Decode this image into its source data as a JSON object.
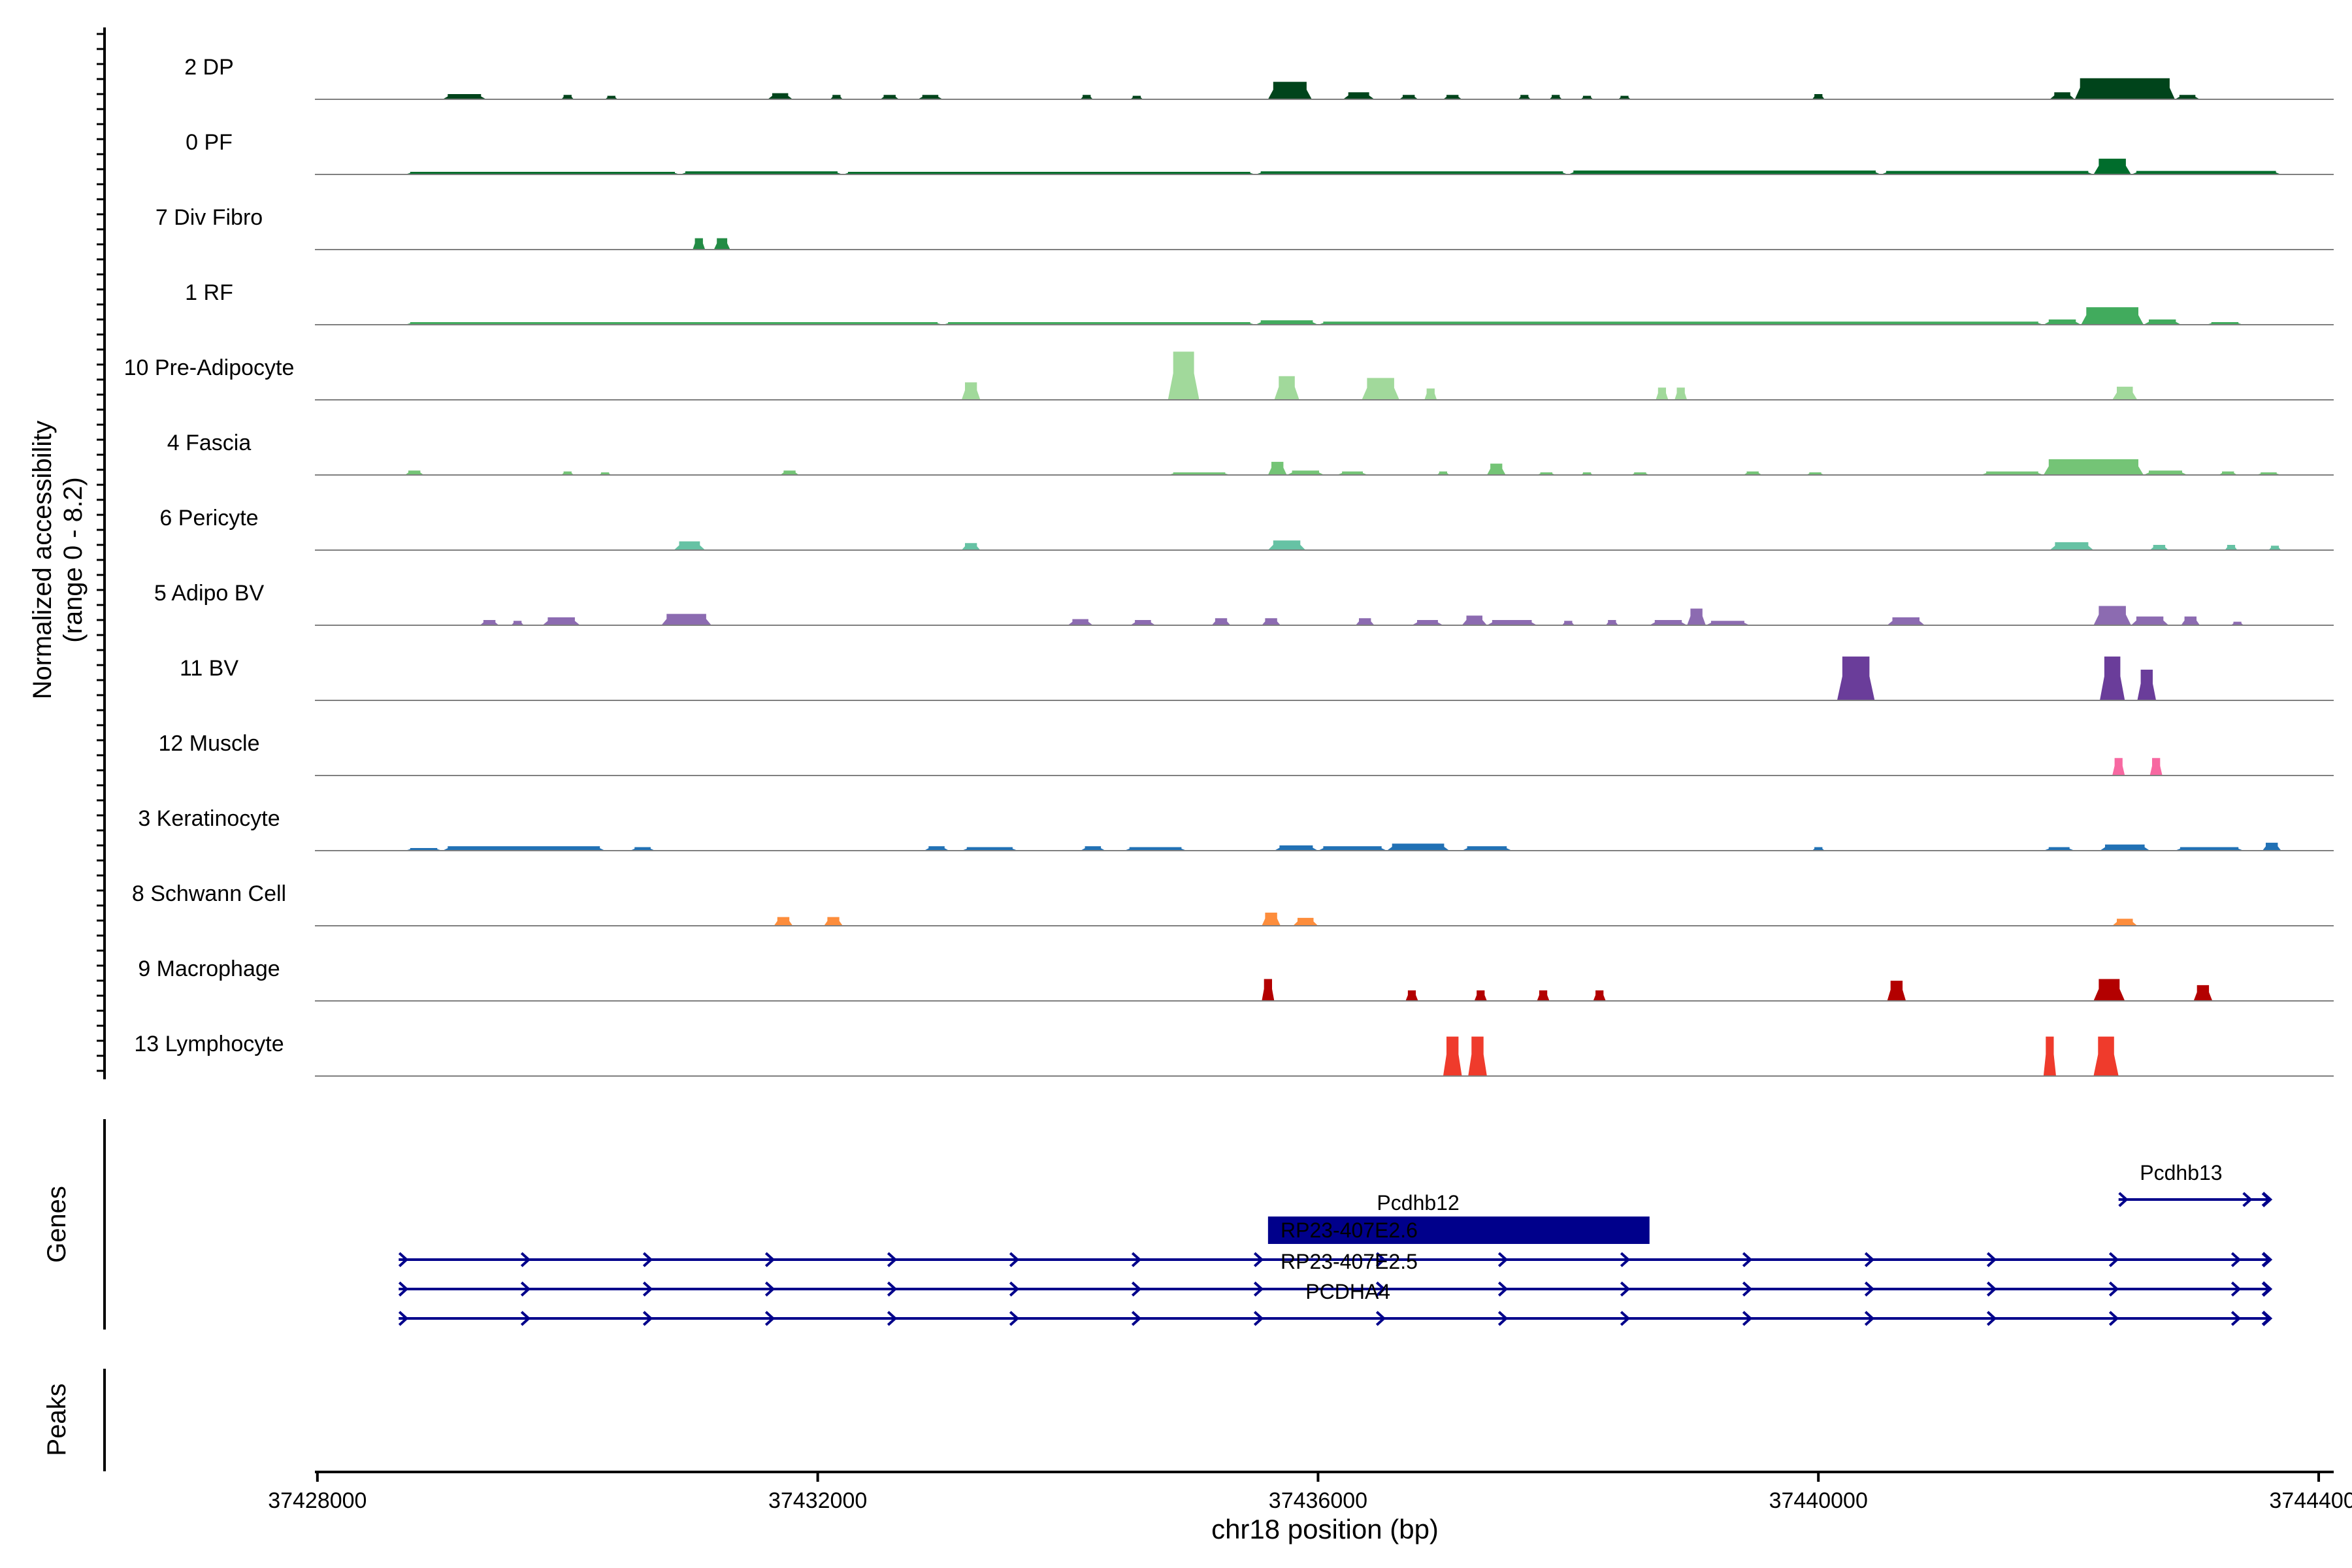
{
  "chart_data": {
    "type": "area",
    "ylabel_line1": "Normalized accessibility",
    "ylabel_line2": "(range 0 - 8.2)",
    "genes_label": "Genes",
    "peaks_label": "Peaks",
    "xlabel": "chr18 position (bp)",
    "xlim": [
      37427980,
      37444120
    ],
    "ylim": [
      0,
      8.2
    ],
    "xticks": [
      37428000,
      37432000,
      37436000,
      37440000,
      37444000
    ],
    "xtick_labels": [
      "37428000",
      "37432000",
      "37436000",
      "37440000",
      "37444000"
    ],
    "tracks": [
      {
        "name": "2 DP",
        "color": "#00441b",
        "segments": [
          [
            37429000,
            37429350,
            0.6
          ],
          [
            37429950,
            37430050,
            0.5
          ],
          [
            37430300,
            37430400,
            0.4
          ],
          [
            37431600,
            37431800,
            0.7
          ],
          [
            37432100,
            37432200,
            0.5
          ],
          [
            37432500,
            37432650,
            0.5
          ],
          [
            37432800,
            37433000,
            0.5
          ],
          [
            37434100,
            37434200,
            0.5
          ],
          [
            37434500,
            37434600,
            0.4
          ],
          [
            37435600,
            37435950,
            2.0
          ],
          [
            37436200,
            37436450,
            0.8
          ],
          [
            37436650,
            37436800,
            0.5
          ],
          [
            37437000,
            37437150,
            0.5
          ],
          [
            37437600,
            37437700,
            0.5
          ],
          [
            37437850,
            37437950,
            0.5
          ],
          [
            37438100,
            37438200,
            0.4
          ],
          [
            37438400,
            37438500,
            0.4
          ],
          [
            37439950,
            37440050,
            0.6
          ],
          [
            37441850,
            37442050,
            0.8
          ],
          [
            37442050,
            37442850,
            2.4
          ],
          [
            37442850,
            37443050,
            0.5
          ]
        ]
      },
      {
        "name": "0 PF",
        "color": "#006d2c",
        "segments": [
          [
            37428700,
            37430900,
            0.3
          ],
          [
            37430900,
            37432200,
            0.35
          ],
          [
            37432200,
            37435500,
            0.3
          ],
          [
            37435500,
            37438000,
            0.35
          ],
          [
            37438000,
            37440500,
            0.45
          ],
          [
            37440500,
            37442200,
            0.4
          ],
          [
            37442200,
            37442500,
            1.8
          ],
          [
            37442500,
            37443700,
            0.4
          ]
        ]
      },
      {
        "name": "7 Div Fibro",
        "color": "#238b45",
        "segments": [
          [
            37431000,
            37431100,
            1.3
          ],
          [
            37431170,
            37431300,
            1.3
          ]
        ]
      },
      {
        "name": "1 RF",
        "color": "#41ab5d",
        "segments": [
          [
            37428700,
            37433000,
            0.3
          ],
          [
            37433000,
            37435500,
            0.3
          ],
          [
            37435500,
            37436000,
            0.5
          ],
          [
            37436000,
            37441800,
            0.35
          ],
          [
            37441800,
            37442100,
            0.6
          ],
          [
            37442100,
            37442600,
            2.0
          ],
          [
            37442600,
            37442900,
            0.6
          ],
          [
            37443100,
            37443400,
            0.3
          ]
        ]
      },
      {
        "name": "10 Pre-Adipocyte",
        "color": "#a1d99b",
        "segments": [
          [
            37433150,
            37433300,
            2.0
          ],
          [
            37434800,
            37435050,
            5.5
          ],
          [
            37435650,
            37435850,
            2.7
          ],
          [
            37436350,
            37436650,
            2.5
          ],
          [
            37436850,
            37436950,
            1.3
          ],
          [
            37438700,
            37438800,
            1.4
          ],
          [
            37438850,
            37438950,
            1.4
          ],
          [
            37442350,
            37442550,
            1.5
          ]
        ]
      },
      {
        "name": "4 Fascia",
        "color": "#74c476",
        "segments": [
          [
            37428700,
            37428850,
            0.5
          ],
          [
            37429950,
            37430050,
            0.4
          ],
          [
            37430250,
            37430350,
            0.3
          ],
          [
            37431700,
            37431850,
            0.5
          ],
          [
            37434800,
            37435300,
            0.3
          ],
          [
            37435600,
            37435750,
            1.5
          ],
          [
            37435750,
            37436050,
            0.5
          ],
          [
            37436150,
            37436400,
            0.4
          ],
          [
            37436950,
            37437050,
            0.4
          ],
          [
            37437350,
            37437500,
            1.3
          ],
          [
            37437750,
            37437900,
            0.3
          ],
          [
            37438100,
            37438200,
            0.3
          ],
          [
            37438500,
            37438650,
            0.3
          ],
          [
            37439400,
            37439550,
            0.4
          ],
          [
            37439900,
            37440050,
            0.3
          ],
          [
            37441300,
            37441800,
            0.4
          ],
          [
            37441800,
            37442600,
            1.8
          ],
          [
            37442600,
            37442950,
            0.5
          ],
          [
            37443200,
            37443350,
            0.4
          ],
          [
            37443500,
            37443700,
            0.3
          ]
        ]
      },
      {
        "name": "6 Pericyte",
        "color": "#66c2a4",
        "segments": [
          [
            37430850,
            37431100,
            1.0
          ],
          [
            37433150,
            37433300,
            0.8
          ],
          [
            37435600,
            37435900,
            1.1
          ],
          [
            37441850,
            37442200,
            0.9
          ],
          [
            37442650,
            37442800,
            0.6
          ],
          [
            37443250,
            37443350,
            0.6
          ],
          [
            37443600,
            37443700,
            0.5
          ]
        ]
      },
      {
        "name": "5 Adipo BV",
        "color": "#8c6bb1",
        "segments": [
          [
            37429300,
            37429450,
            0.6
          ],
          [
            37429550,
            37429650,
            0.5
          ],
          [
            37429800,
            37430100,
            0.9
          ],
          [
            37430750,
            37431150,
            1.3
          ],
          [
            37434000,
            37434200,
            0.7
          ],
          [
            37434500,
            37434700,
            0.6
          ],
          [
            37435150,
            37435300,
            0.8
          ],
          [
            37435550,
            37435700,
            0.8
          ],
          [
            37436300,
            37436450,
            0.8
          ],
          [
            37436750,
            37437000,
            0.6
          ],
          [
            37437150,
            37437350,
            1.1
          ],
          [
            37437350,
            37437750,
            0.6
          ],
          [
            37437950,
            37438050,
            0.5
          ],
          [
            37438300,
            37438400,
            0.6
          ],
          [
            37438650,
            37438950,
            0.6
          ],
          [
            37438950,
            37439100,
            1.9
          ],
          [
            37439100,
            37439450,
            0.5
          ],
          [
            37440550,
            37440850,
            0.9
          ],
          [
            37442200,
            37442500,
            2.2
          ],
          [
            37442500,
            37442800,
            1.0
          ],
          [
            37442900,
            37443050,
            1.0
          ],
          [
            37443300,
            37443400,
            0.4
          ]
        ]
      },
      {
        "name": "11 BV",
        "color": "#6a3d9a",
        "segments": [
          [
            37440150,
            37440450,
            5.0
          ],
          [
            37442250,
            37442450,
            5.0
          ],
          [
            37442550,
            37442700,
            3.5
          ]
        ]
      },
      {
        "name": "12 Muscle",
        "color": "#f768a1",
        "segments": [
          [
            37442350,
            37442450,
            2.0
          ],
          [
            37442650,
            37442750,
            2.0
          ]
        ]
      },
      {
        "name": "3 Keratinocyte",
        "color": "#2171b5",
        "segments": [
          [
            37428700,
            37429000,
            0.3
          ],
          [
            37429000,
            37430300,
            0.5
          ],
          [
            37430500,
            37430700,
            0.4
          ],
          [
            37432850,
            37433050,
            0.5
          ],
          [
            37433150,
            37433600,
            0.4
          ],
          [
            37434100,
            37434300,
            0.5
          ],
          [
            37434450,
            37434950,
            0.4
          ],
          [
            37435650,
            37436000,
            0.6
          ],
          [
            37436000,
            37436550,
            0.5
          ],
          [
            37436550,
            37437050,
            0.8
          ],
          [
            37437150,
            37437550,
            0.5
          ],
          [
            37439950,
            37440050,
            0.4
          ],
          [
            37441800,
            37442050,
            0.4
          ],
          [
            37442250,
            37442650,
            0.7
          ],
          [
            37442850,
            37443400,
            0.4
          ],
          [
            37443550,
            37443700,
            0.9
          ]
        ]
      },
      {
        "name": "8 Schwann Cell",
        "color": "#fd8d3c",
        "segments": [
          [
            37431650,
            37431800,
            1.0
          ],
          [
            37432050,
            37432200,
            1.0
          ],
          [
            37435550,
            37435700,
            1.5
          ],
          [
            37435800,
            37436000,
            0.9
          ],
          [
            37442350,
            37442550,
            0.8
          ]
        ]
      },
      {
        "name": "9 Macrophage",
        "color": "#b30000",
        "segments": [
          [
            37435550,
            37435650,
            2.5
          ],
          [
            37436700,
            37436800,
            1.2
          ],
          [
            37437250,
            37437350,
            1.2
          ],
          [
            37437750,
            37437850,
            1.2
          ],
          [
            37438200,
            37438300,
            1.2
          ],
          [
            37440550,
            37440700,
            2.3
          ],
          [
            37442200,
            37442450,
            2.5
          ],
          [
            37443000,
            37443150,
            1.8
          ]
        ]
      },
      {
        "name": "13 Lymphocyte",
        "color": "#ef3b2c",
        "segments": [
          [
            37437000,
            37437150,
            4.5
          ],
          [
            37437200,
            37437350,
            4.5
          ],
          [
            37441800,
            37441900,
            4.5
          ],
          [
            37442200,
            37442400,
            4.5
          ]
        ]
      }
    ],
    "genes": [
      {
        "name": "Pcdhb13",
        "start": 37442400,
        "end": 37443600,
        "row": 0,
        "label_x": 37442900,
        "block": false
      },
      {
        "name": "Pcdhb12",
        "start": 37435600,
        "end": 37438650,
        "row": 1,
        "label_x": 37436800,
        "block": true
      },
      {
        "name": "RP23-407E2.6",
        "start": 37428650,
        "end": 37443600,
        "row": 2,
        "label_x": 37435700,
        "block": false
      },
      {
        "name": "RP23-407E2.5",
        "start": 37428650,
        "end": 37443600,
        "row": 3,
        "label_x": 37435700,
        "block": false
      },
      {
        "name": "PCDHA4",
        "start": 37428650,
        "end": 37443600,
        "row": 4,
        "label_x": 37435900,
        "block": false
      }
    ],
    "peaks": []
  }
}
